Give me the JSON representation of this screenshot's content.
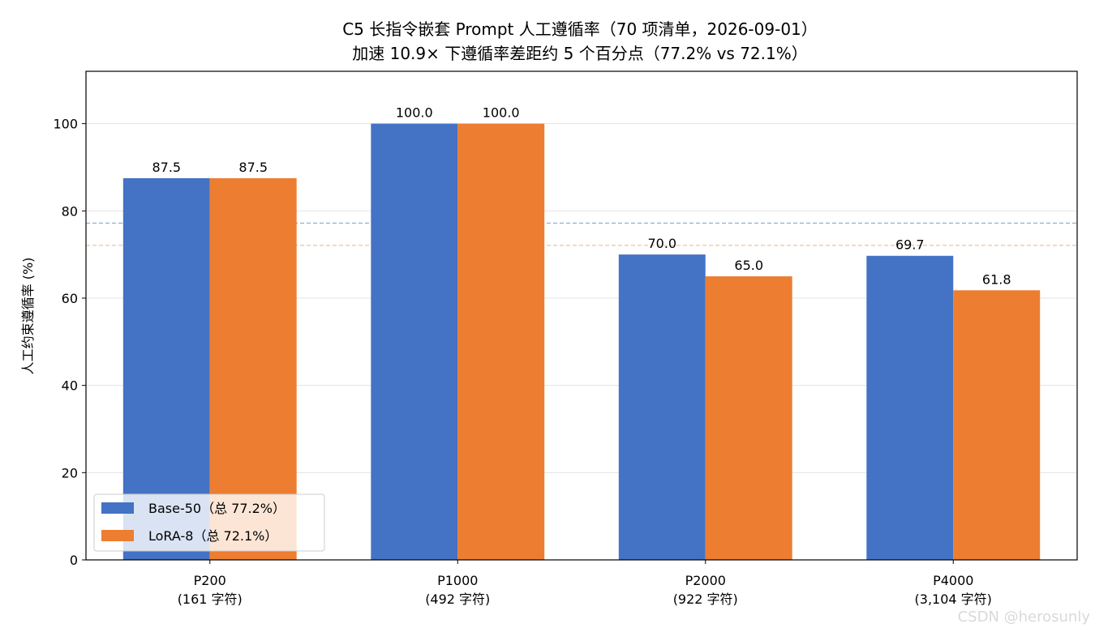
{
  "chart_data": {
    "type": "bar",
    "title": "C5 长指令嵌套 Prompt 人工遵循率（70 项清单，2026-09-01）",
    "subtitle": "加速 10.9× 下遵循率差距约 5 个百分点（77.2% vs 72.1%）",
    "xlabel": "",
    "ylabel": "人工约束遵循率 (%)",
    "ylim": [
      0,
      112
    ],
    "yticks": [
      0,
      20,
      40,
      60,
      80,
      100
    ],
    "grid": "horizontal",
    "legend_position": "lower-left",
    "categories": [
      [
        "P200",
        "(161 字符)"
      ],
      [
        "P1000",
        "(492 字符)"
      ],
      [
        "P2000",
        "(922 字符)"
      ],
      [
        "P4000",
        "(3,104 字符)"
      ]
    ],
    "series": [
      {
        "name": "Base-50（总 77.2%）",
        "color": "#4472c4",
        "values": [
          87.5,
          100.0,
          70.0,
          69.7
        ],
        "labels": [
          "87.5",
          "100.0",
          "70.0",
          "69.7"
        ],
        "reference_line": 77.2
      },
      {
        "name": "LoRA-8（总 72.1%）",
        "color": "#ed7d31",
        "values": [
          87.5,
          100.0,
          65.0,
          61.8
        ],
        "labels": [
          "87.5",
          "100.0",
          "65.0",
          "61.8"
        ],
        "reference_line": 72.1
      }
    ]
  },
  "watermark": "CSDN @herosunly"
}
